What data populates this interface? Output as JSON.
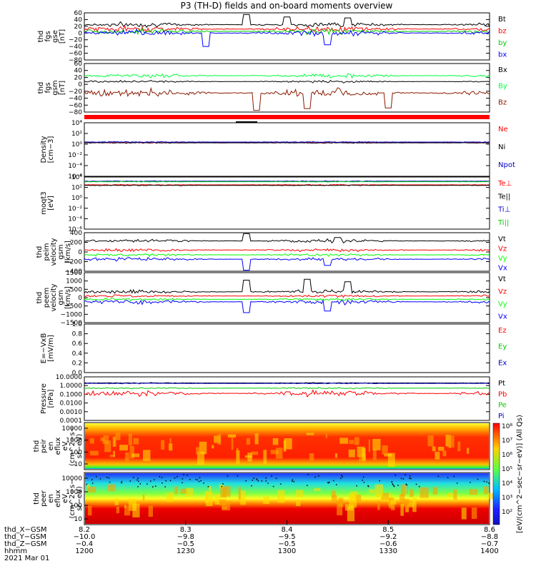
{
  "chart_data": {
    "type": "line",
    "title": "P3 (TH-D) fields and on-board moments overview",
    "panels": [
      {
        "id": "fgs_gse",
        "ylabel": [
          "thd",
          "fgs",
          "gse",
          "[nT]"
        ],
        "ylim": [
          -80,
          60
        ],
        "yticks": [
          "60",
          "40",
          "20",
          "0",
          "−20",
          "−40",
          "−60",
          "−80"
        ],
        "series": [
          {
            "name": "Bt",
            "color": "#000000",
            "base": 25,
            "amp": 8,
            "spikes": [
              {
                "x": 8.36,
                "v": 55
              },
              {
                "x": 8.4,
                "v": 48
              },
              {
                "x": 8.46,
                "v": 45
              }
            ]
          },
          {
            "name": "bz",
            "color": "#ff0000",
            "base": 12,
            "amp": 10
          },
          {
            "name": "by",
            "color": "#00cc00",
            "base": 5,
            "amp": 10
          },
          {
            "name": "bx",
            "color": "#0000ff",
            "base": 0,
            "amp": 10,
            "spikes": [
              {
                "x": 8.32,
                "v": -40
              },
              {
                "x": 8.44,
                "v": -35
              }
            ]
          }
        ]
      },
      {
        "id": "fgs_gsm",
        "ylabel": [
          "thd",
          "fgs",
          "gsm",
          "[nT]"
        ],
        "ylim": [
          -80,
          60
        ],
        "yticks": [
          "60",
          "40",
          "20",
          "0",
          "−20",
          "−40",
          "−60",
          "−80"
        ],
        "series": [
          {
            "name": "Bx",
            "color": "#000000",
            "base": 8,
            "amp": 4
          },
          {
            "name": "By",
            "color": "#00ff40",
            "base": 25,
            "amp": 7
          },
          {
            "name": "Bz",
            "color": "#8b1a00",
            "base": -25,
            "amp": 14,
            "spikes": [
              {
                "x": 8.37,
                "v": -75
              },
              {
                "x": 8.42,
                "v": -70
              },
              {
                "x": 8.5,
                "v": -68
              }
            ]
          }
        ]
      },
      {
        "id": "density",
        "ylabel": [
          "Density",
          "[cm−3]"
        ],
        "ylim": [
          -6,
          4
        ],
        "log": true,
        "yticks": [
          "10⁴",
          "10²",
          "10⁰",
          "10⁻²",
          "10⁻⁴",
          "10⁻⁶"
        ],
        "series": [
          {
            "name": "Ne",
            "color": "#ff0000",
            "base": 0.3,
            "amp": 0.15
          },
          {
            "name": "Ni",
            "color": "#000000",
            "base": 0.25,
            "amp": 0.1
          },
          {
            "name": "Npot",
            "color": "#0000cc",
            "base": 0.4,
            "amp": 0.12
          }
        ]
      },
      {
        "id": "temperature",
        "ylabel": [
          "moqt3",
          "[eV]"
        ],
        "ylim": [
          -6,
          4
        ],
        "log": true,
        "yticks": [
          "10⁴",
          "10²",
          "10⁰",
          "10⁻²",
          "10⁻⁴",
          "10⁻⁶"
        ],
        "series": [
          {
            "name": "Te⊥",
            "color": "#ff0000",
            "base": 2.5,
            "amp": 0.1
          },
          {
            "name": "Te||",
            "color": "#000000",
            "base": 2.4,
            "amp": 0.1
          },
          {
            "name": "Ti⊥",
            "color": "#0000cc",
            "base": 3.2,
            "amp": 0.08
          },
          {
            "name": "Ti||",
            "color": "#00cc00",
            "base": 3.1,
            "amp": 0.08
          }
        ]
      },
      {
        "id": "peim_velocity",
        "ylabel": [
          "thd",
          "peim",
          "velocity",
          "gsm",
          "[km/s]"
        ],
        "ylim": [
          -400,
          400
        ],
        "yticks": [
          "400",
          "200",
          "0",
          "−200",
          "−400"
        ],
        "series": [
          {
            "name": "Vt",
            "color": "#000000",
            "base": 230,
            "amp": 40,
            "spikes": [
              {
                "x": 8.36,
                "v": 380
              },
              {
                "x": 8.45,
                "v": 300
              }
            ]
          },
          {
            "name": "Vz",
            "color": "#ff0000",
            "base": 40,
            "amp": 40
          },
          {
            "name": "Vy",
            "color": "#00ff00",
            "base": -60,
            "amp": 35
          },
          {
            "name": "Vx",
            "color": "#0000ff",
            "base": -150,
            "amp": 40,
            "spikes": [
              {
                "x": 8.36,
                "v": -380
              },
              {
                "x": 8.44,
                "v": -280
              }
            ]
          }
        ]
      },
      {
        "id": "peem_velocity",
        "ylabel": [
          "thd",
          "peem",
          "velocity",
          "gsm",
          "[km/s]"
        ],
        "ylim": [
          -1500,
          1500
        ],
        "yticks": [
          "1500",
          "1000",
          "500",
          "0",
          "−500",
          "−1000",
          "−1500"
        ],
        "series": [
          {
            "name": "Vt",
            "color": "#000000",
            "base": 350,
            "amp": 150,
            "spikes": [
              {
                "x": 8.36,
                "v": 1050
              },
              {
                "x": 8.42,
                "v": 1100
              },
              {
                "x": 8.46,
                "v": 950
              }
            ]
          },
          {
            "name": "Vz",
            "color": "#ff0000",
            "base": 100,
            "amp": 90
          },
          {
            "name": "Vy",
            "color": "#00ff00",
            "base": -100,
            "amp": 90
          },
          {
            "name": "Vx",
            "color": "#0000ff",
            "base": -250,
            "amp": 150,
            "spikes": [
              {
                "x": 8.36,
                "v": -900
              },
              {
                "x": 8.44,
                "v": -800
              }
            ]
          }
        ]
      },
      {
        "id": "efield",
        "ylabel": [
          "E=−VxB",
          "[mV/m]"
        ],
        "ylim": [
          0,
          1
        ],
        "yticks": [
          "1.0",
          "0.8",
          "0.6",
          "0.4",
          "0.2",
          "0.0"
        ],
        "series": [
          {
            "name": "Ez",
            "color": "#ff0000"
          },
          {
            "name": "Ey",
            "color": "#00cc00"
          },
          {
            "name": "Ex",
            "color": "#0000cc"
          }
        ]
      },
      {
        "id": "pressure",
        "ylabel": [
          "Pressure",
          "[nPa]"
        ],
        "ylim": [
          -4,
          1
        ],
        "log": true,
        "yticks": [
          "10.0000",
          "1.0000",
          "0.1000",
          "0.0100",
          "0.0010",
          "0.0001"
        ],
        "series": [
          {
            "name": "Pt",
            "color": "#000000",
            "base": 0.3,
            "amp": 0.05
          },
          {
            "name": "Pb",
            "color": "#ff0000",
            "base": -0.9,
            "amp": 0.4
          },
          {
            "name": "Pe",
            "color": "#00cc00",
            "base": -0.3,
            "amp": 0.1
          },
          {
            "name": "Pi",
            "color": "#0000cc",
            "base": 0.25,
            "amp": 0.05
          }
        ]
      },
      {
        "id": "peir_eflux",
        "type": "heatmap",
        "ylabel": [
          "thd",
          "peir",
          "en",
          "eflux",
          "eV",
          "(cm^2−s−",
          "sr−eV)"
        ],
        "yticks": [
          "10000",
          "1000",
          "100",
          "10"
        ]
      },
      {
        "id": "peer_eflux",
        "type": "heatmap",
        "ylabel": [
          "thd",
          "peer",
          "en",
          "eflux",
          "eV",
          "(cm^2−s−",
          "sr−eV)"
        ],
        "yticks": [
          "10000",
          "1000",
          "100",
          "10"
        ]
      }
    ],
    "colorbar": {
      "label": "[eV/(cm^2−sec−sr−eV)] (All Qs)",
      "ticks": [
        "10⁸",
        "10⁷",
        "10⁶",
        "10⁵",
        "10⁴",
        "10³",
        "10²"
      ]
    },
    "x": {
      "range": [
        8.2,
        8.6
      ],
      "ephem_rows": [
        {
          "label": "thd_X−GSM",
          "values": [
            "8.2",
            "8.3",
            "8.4",
            "8.5",
            "8.6"
          ]
        },
        {
          "label": "thd_Y−GSM",
          "values": [
            "−10.0",
            "−9.8",
            "−9.5",
            "−9.2",
            "−8.8"
          ]
        },
        {
          "label": "thd_Z−GSM",
          "values": [
            "−0.4",
            "−0.5",
            "−0.5",
            "−0.6",
            "−0.7"
          ]
        },
        {
          "label": "hhmm",
          "values": [
            "1200",
            "1230",
            "1300",
            "1330",
            "1400"
          ]
        }
      ],
      "date": "2021 Mar 01"
    }
  }
}
